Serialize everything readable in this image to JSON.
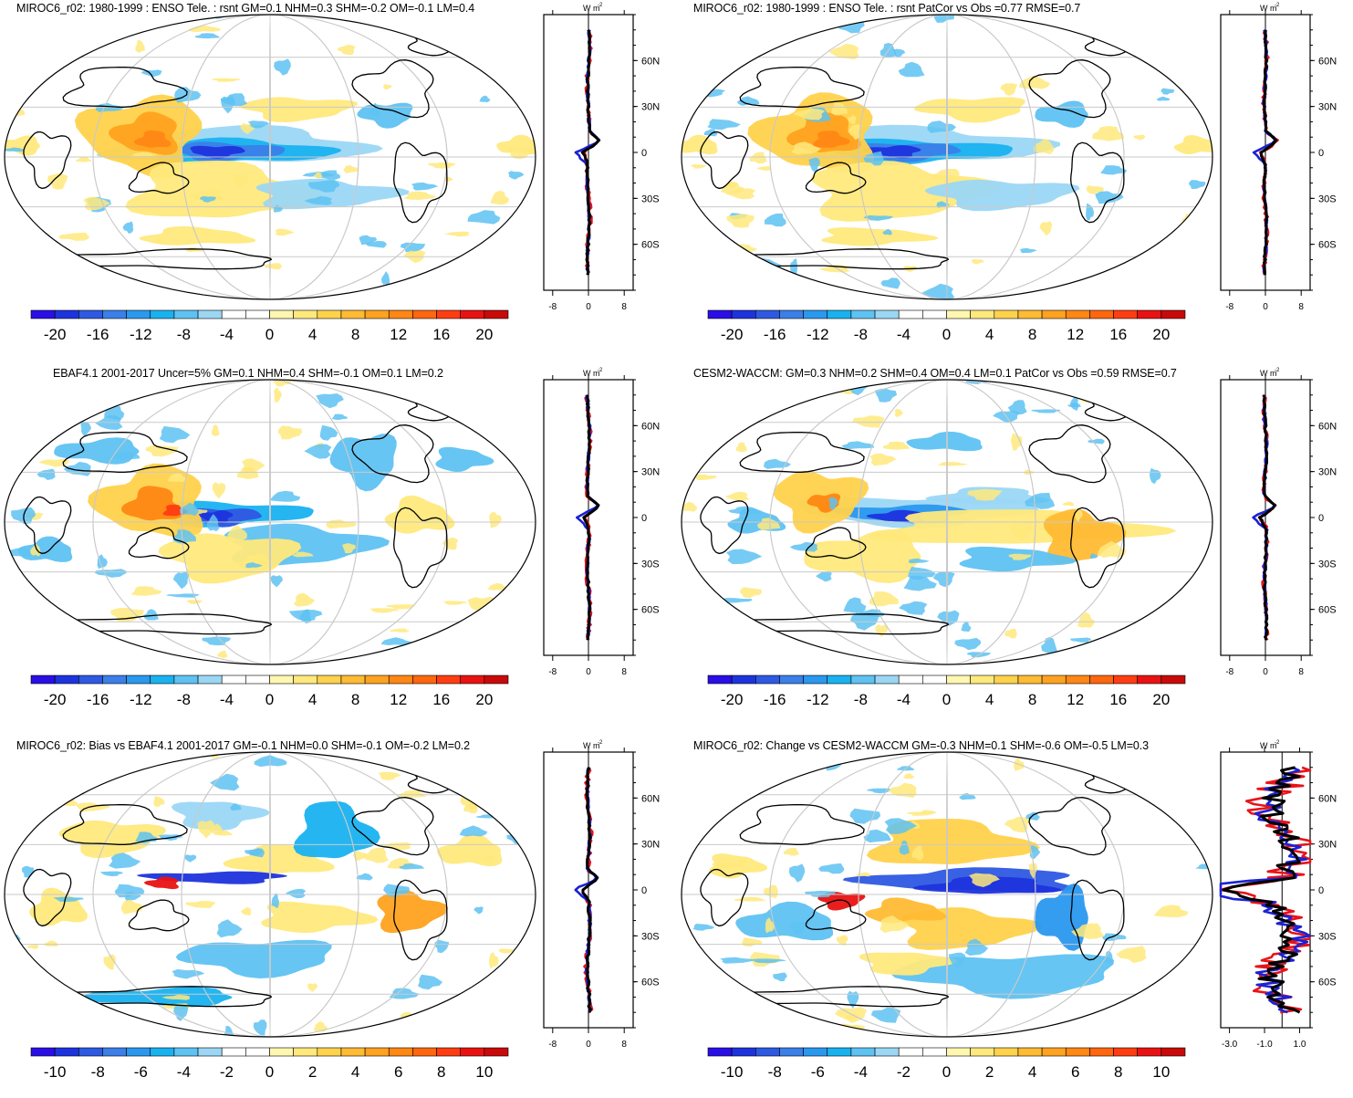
{
  "panels": [
    {
      "title": "MIROC6_r02: 1980-1999 : ENSO Tele. : rsnt GM=0.1 NHM=0.3 SHM=-0.2 OM=-0.1 LM=0.4",
      "map": "enso",
      "colorbar": {
        "labels": [
          "-20",
          "-16",
          "-12",
          "-8",
          "-4",
          "0",
          "4",
          "8",
          "12",
          "16",
          "20"
        ]
      },
      "zonal": {
        "unit": "W m-2",
        "xticks": [
          "-8",
          "0",
          "8"
        ],
        "lat_labels": [
          "60N",
          "30N",
          "0",
          "30S",
          "60S"
        ],
        "xlim": [
          -10,
          10
        ]
      }
    },
    {
      "title": "MIROC6_r02: 1980-1999 : ENSO Tele. : rsnt PatCor vs Obs =0.77 RMSE=0.7",
      "map": "enso",
      "colorbar": {
        "labels": [
          "-20",
          "-16",
          "-12",
          "-8",
          "-4",
          "0",
          "4",
          "8",
          "12",
          "16",
          "20"
        ]
      },
      "zonal": {
        "unit": "W m-2",
        "xticks": [
          "-8",
          "0",
          "8"
        ],
        "lat_labels": [
          "60N",
          "30N",
          "0",
          "30S",
          "60S"
        ],
        "xlim": [
          -10,
          10
        ]
      }
    },
    {
      "title": "EBAF4.1 2001-2017 Uncer=5% GM=0.1 NHM=0.4 SHM=-0.1 OM=0.1 LM=0.2",
      "map": "obs",
      "colorbar": {
        "labels": [
          "-20",
          "-16",
          "-12",
          "-8",
          "-4",
          "0",
          "4",
          "8",
          "12",
          "16",
          "20"
        ]
      },
      "zonal": {
        "unit": "W m-2",
        "xticks": [
          "-8",
          "0",
          "8"
        ],
        "lat_labels": [
          "60N",
          "30N",
          "0",
          "30S",
          "60S"
        ],
        "xlim": [
          -10,
          10
        ]
      }
    },
    {
      "title": "CESM2-WACCM: GM=0.3 NHM=0.2 SHM=0.4 OM=0.4 LM=0.1 PatCor vs Obs =0.59 RMSE=0.7",
      "map": "cesm",
      "colorbar": {
        "labels": [
          "-20",
          "-16",
          "-12",
          "-8",
          "-4",
          "0",
          "4",
          "8",
          "12",
          "16",
          "20"
        ]
      },
      "zonal": {
        "unit": "W m-2",
        "xticks": [
          "-8",
          "0",
          "8"
        ],
        "lat_labels": [
          "60N",
          "30N",
          "0",
          "30S",
          "60S"
        ],
        "xlim": [
          -10,
          10
        ]
      }
    },
    {
      "title": "MIROC6_r02: Bias vs EBAF4.1 2001-2017 GM=-0.1 NHM=0.0 SHM=-0.1 OM=-0.2 LM=0.2",
      "map": "bias",
      "colorbar": {
        "labels": [
          "-10",
          "-8",
          "-6",
          "-4",
          "-2",
          "0",
          "2",
          "4",
          "6",
          "8",
          "10"
        ]
      },
      "zonal": {
        "unit": "W m-2",
        "xticks": [
          "-8",
          "0",
          "8"
        ],
        "lat_labels": [
          "60N",
          "30N",
          "0",
          "30S",
          "60S"
        ],
        "xlim": [
          -10,
          10
        ]
      }
    },
    {
      "title": "MIROC6_r02: Change vs CESM2-WACCM GM=-0.3 NHM=0.1 SHM=-0.6 OM=-0.5 LM=0.3",
      "map": "change",
      "colorbar": {
        "labels": [
          "-10",
          "-8",
          "-6",
          "-4",
          "-2",
          "0",
          "2",
          "4",
          "6",
          "8",
          "10"
        ]
      },
      "zonal": {
        "unit": "W m-2",
        "xticks": [
          "-3.0",
          "-1.0",
          "1.0"
        ],
        "lat_labels": [
          "60N",
          "30N",
          "0",
          "30S",
          "60S"
        ],
        "xlim": [
          -3.5,
          1.6
        ]
      }
    }
  ],
  "colors": {
    "scale": [
      "#2a0ee6",
      "#1d33dd",
      "#2e59e2",
      "#3b7fe8",
      "#2a98ee",
      "#19b2f0",
      "#5ec2f2",
      "#9bd7f5",
      "#ffffff",
      "#ffffff",
      "#fff7b0",
      "#ffe97c",
      "#ffd24b",
      "#ffbb33",
      "#ffa21f",
      "#ff8714",
      "#ff660e",
      "#ff3d12",
      "#e91212",
      "#c90a0a"
    ],
    "series_model": "#e8131a",
    "series_obs": "#1b22d4",
    "series_ref": "#000000",
    "land_outline": "#000000",
    "graticule": "#c9c9c9"
  }
}
